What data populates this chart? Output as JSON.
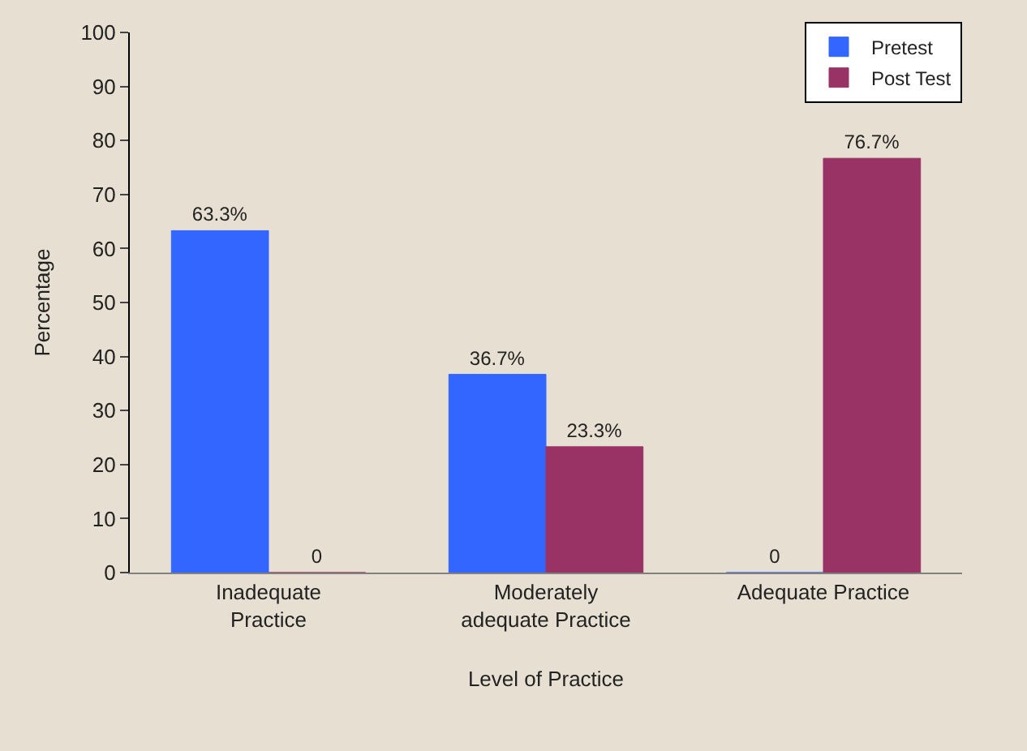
{
  "chart_data": {
    "type": "bar",
    "xlabel": "Level of Practice",
    "ylabel": "Percentage",
    "categories": [
      "Inadequate Practice",
      "Moderately adequate Practice",
      "Adequate Practice"
    ],
    "series": [
      {
        "name": "Pretest",
        "color": "#3366ff",
        "values": [
          63.3,
          36.7,
          0
        ],
        "value_labels": [
          "63.3%",
          "36.7%",
          "0"
        ]
      },
      {
        "name": "Post Test",
        "color": "#993366",
        "values": [
          0,
          23.3,
          76.7
        ],
        "value_labels": [
          "0",
          "23.3%",
          "76.7%"
        ]
      }
    ],
    "ylim": [
      0,
      100
    ],
    "yticks": [
      0,
      10,
      20,
      30,
      40,
      50,
      60,
      70,
      80,
      90,
      100
    ],
    "grid": false,
    "legend": "top right"
  }
}
